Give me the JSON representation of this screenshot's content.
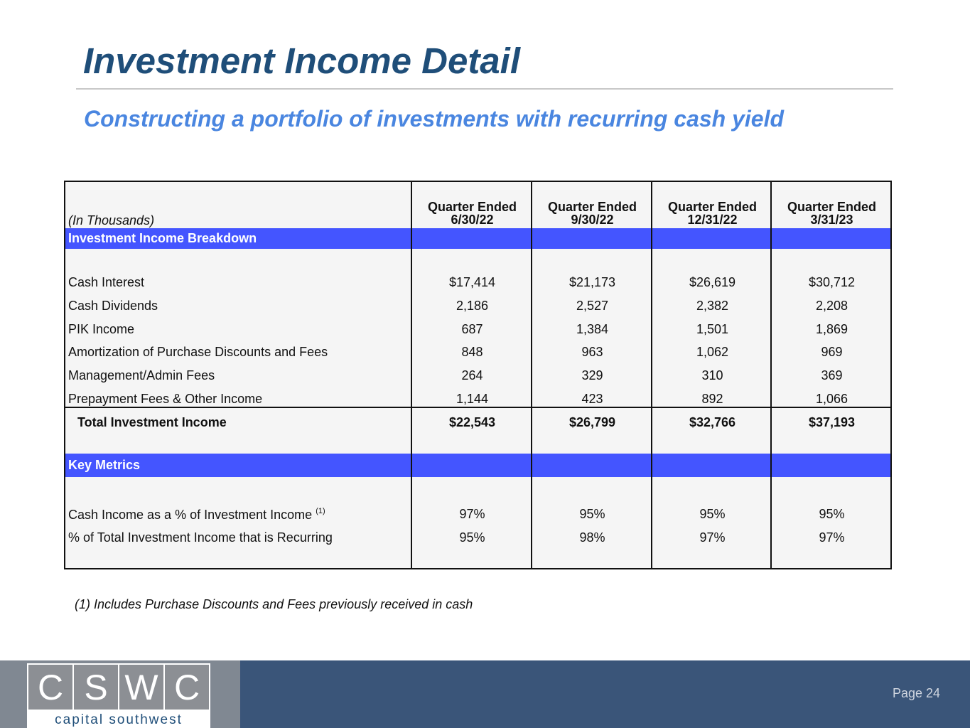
{
  "title": "Investment Income Detail",
  "subtitle": "Constructing a portfolio of investments with recurring cash yield",
  "table": {
    "units": "(In Thousands)",
    "columns": [
      {
        "line1": "Quarter Ended",
        "line2": "6/30/22"
      },
      {
        "line1": "Quarter Ended",
        "line2": "9/30/22"
      },
      {
        "line1": "Quarter Ended",
        "line2": "12/31/22"
      },
      {
        "line1": "Quarter Ended",
        "line2": "3/31/23"
      }
    ],
    "section1": "Investment Income Breakdown",
    "rows": [
      {
        "label": "Cash Interest",
        "values": [
          "$17,414",
          "$21,173",
          "$26,619",
          "$30,712"
        ]
      },
      {
        "label": "Cash Dividends",
        "values": [
          "2,186",
          "2,527",
          "2,382",
          "2,208"
        ]
      },
      {
        "label": "PIK Income",
        "values": [
          "687",
          "1,384",
          "1,501",
          "1,869"
        ]
      },
      {
        "label": "Amortization of Purchase Discounts and Fees",
        "values": [
          "848",
          "963",
          "1,062",
          "969"
        ]
      },
      {
        "label": "Management/Admin Fees",
        "values": [
          "264",
          "329",
          "310",
          "369"
        ]
      },
      {
        "label": "Prepayment Fees & Other Income",
        "values": [
          "1,144",
          "423",
          "892",
          "1,066"
        ]
      }
    ],
    "total": {
      "label": "Total Investment Income",
      "values": [
        "$22,543",
        "$26,799",
        "$32,766",
        "$37,193"
      ]
    },
    "section2": "Key Metrics",
    "metrics": [
      {
        "label": "Cash Income as a % of Investment Income",
        "sup": "(1)",
        "values": [
          "97%",
          "95%",
          "95%",
          "95%"
        ]
      },
      {
        "label": "% of Total Investment Income that is Recurring",
        "values": [
          "95%",
          "98%",
          "97%",
          "97%"
        ]
      }
    ]
  },
  "footnote": "(1)  Includes Purchase Discounts and Fees previously received in cash",
  "footer": {
    "logo_letters": [
      "C",
      "S",
      "W",
      "C"
    ],
    "logo_text": "capital southwest",
    "page": "Page 24"
  }
}
